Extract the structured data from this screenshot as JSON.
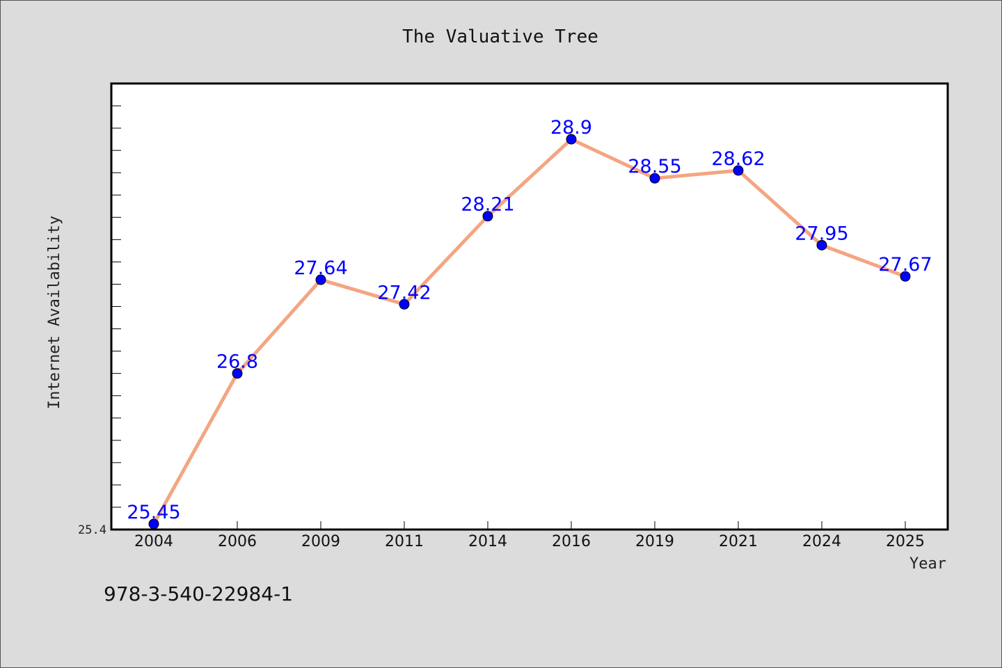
{
  "chart_data": {
    "type": "line",
    "title": "The Valuative Tree",
    "xlabel": "Year",
    "ylabel": "Internet Availability",
    "categories": [
      "2004",
      "2006",
      "2009",
      "2011",
      "2014",
      "2016",
      "2019",
      "2021",
      "2024",
      "2025"
    ],
    "series": [
      {
        "values": [
          25.45,
          26.8,
          27.64,
          27.42,
          28.21,
          28.9,
          28.55,
          28.62,
          27.95,
          27.67
        ],
        "labels": [
          "25.45",
          "26.8",
          "27.64",
          "27.42",
          "28.21",
          "28.9",
          "28.55",
          "28.62",
          "27.95",
          "27.67"
        ]
      }
    ],
    "ylim": [
      25.4,
      29.4
    ],
    "y_tick_label": "25.4",
    "grid": false,
    "line_color": "#f4a582",
    "marker_color": "#0000ff",
    "label_color": "#0000ff"
  },
  "footer": {
    "isbn": "978-3-540-22984-1"
  }
}
